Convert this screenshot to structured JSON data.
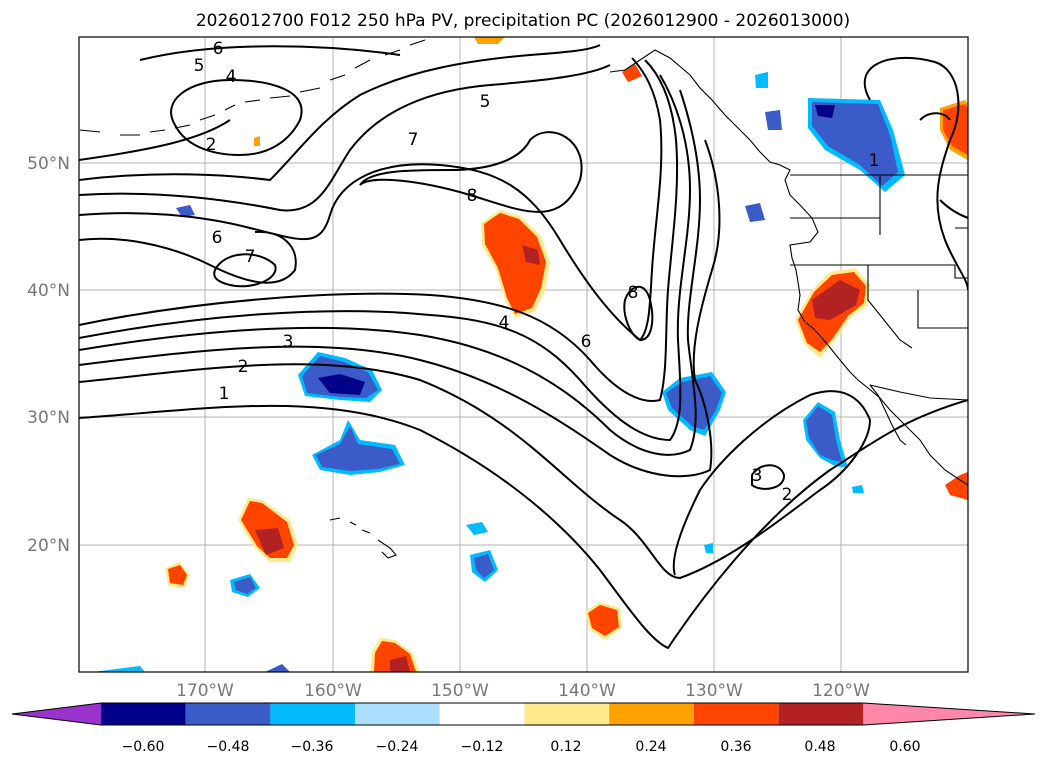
{
  "title": "2026012700 F012 250 hPa PV, precipitation PC (2026012900 - 2026013000)",
  "map": {
    "latitude_labels": [
      "50°N",
      "40°N",
      "30°N",
      "20°N"
    ],
    "longitude_labels": [
      "170°W",
      "160°W",
      "150°W",
      "140°W",
      "130°W",
      "120°W"
    ],
    "contour_labels": [
      {
        "text": "6",
        "name": "pv-label-6-north"
      },
      {
        "text": "5",
        "name": "pv-label-5-north"
      },
      {
        "text": "4",
        "name": "pv-label-4-north"
      },
      {
        "text": "2",
        "name": "pv-label-2-aleutian"
      },
      {
        "text": "5",
        "name": "pv-label-5-gulf"
      },
      {
        "text": "7",
        "name": "pv-label-7-ridge"
      },
      {
        "text": "8",
        "name": "pv-label-8-ridge"
      },
      {
        "text": "6",
        "name": "pv-label-6-west"
      },
      {
        "text": "7",
        "name": "pv-label-7-west"
      },
      {
        "text": "3",
        "name": "pv-label-3"
      },
      {
        "text": "2",
        "name": "pv-label-2"
      },
      {
        "text": "1",
        "name": "pv-label-1"
      },
      {
        "text": "4",
        "name": "pv-label-4-trough"
      },
      {
        "text": "6",
        "name": "pv-label-6-trough"
      },
      {
        "text": "8",
        "name": "pv-label-8-trough"
      },
      {
        "text": "3",
        "name": "pv-label-3-cutoff"
      },
      {
        "text": "2",
        "name": "pv-label-2-cutoff"
      },
      {
        "text": "1",
        "name": "pv-label-1-coast"
      }
    ]
  },
  "colorbar": {
    "colors": [
      "#9933cc",
      "#000088",
      "#3a5bc8",
      "#00bbff",
      "#aadfff",
      "#ffffff",
      "#ffe98a",
      "#ffa200",
      "#ff4400",
      "#b22222",
      "#ff88aa"
    ],
    "tick_labels": [
      "−0.60",
      "−0.48",
      "−0.36",
      "−0.24",
      "−0.12",
      "0.12",
      "0.24",
      "0.36",
      "0.48",
      "0.60"
    ]
  },
  "colors": {
    "negative_dark": "#000088",
    "negative_mid": "#3a5bc8",
    "negative_light": "#00bbff",
    "positive_light": "#ffe98a",
    "positive_mid": "#ffa200",
    "positive_strong": "#ff4400",
    "positive_dark": "#b22222"
  }
}
